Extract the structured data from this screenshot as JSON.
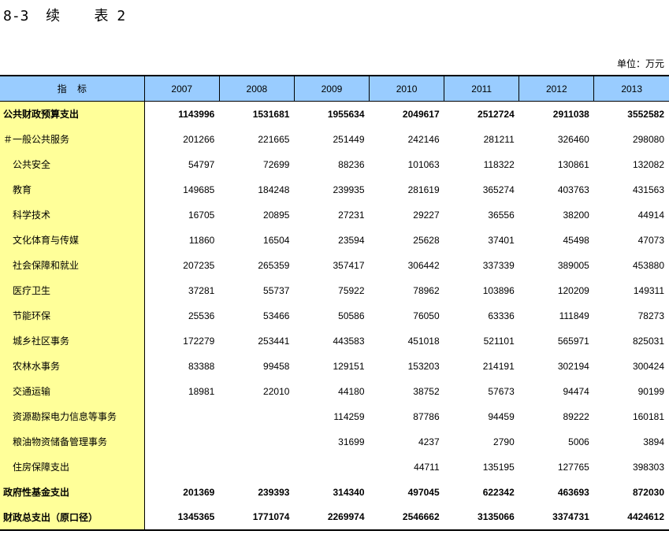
{
  "title": "8-3  续    表 2",
  "unit": "单位：万元",
  "header": {
    "indicator": "指    标",
    "years": [
      "2007",
      "2008",
      "2009",
      "2010",
      "2011",
      "2012",
      "2013"
    ]
  },
  "rows": [
    {
      "label": "公共财政预算支出",
      "bold": true,
      "indent": false,
      "values": [
        "1143996",
        "1531681",
        "1955634",
        "2049617",
        "2512724",
        "2911038",
        "3552582"
      ]
    },
    {
      "label": "＃一般公共服务",
      "bold": false,
      "indent": false,
      "values": [
        "201266",
        "221665",
        "251449",
        "242146",
        "281211",
        "326460",
        "298080"
      ]
    },
    {
      "label": "公共安全",
      "bold": false,
      "indent": true,
      "values": [
        "54797",
        "72699",
        "88236",
        "101063",
        "118322",
        "130861",
        "132082"
      ]
    },
    {
      "label": "教育",
      "bold": false,
      "indent": true,
      "values": [
        "149685",
        "184248",
        "239935",
        "281619",
        "365274",
        "403763",
        "431563"
      ]
    },
    {
      "label": "科学技术",
      "bold": false,
      "indent": true,
      "values": [
        "16705",
        "20895",
        "27231",
        "29227",
        "36556",
        "38200",
        "44914"
      ]
    },
    {
      "label": "文化体育与传媒",
      "bold": false,
      "indent": true,
      "values": [
        "11860",
        "16504",
        "23594",
        "25628",
        "37401",
        "45498",
        "47073"
      ]
    },
    {
      "label": "社会保障和就业",
      "bold": false,
      "indent": true,
      "values": [
        "207235",
        "265359",
        "357417",
        "306442",
        "337339",
        "389005",
        "453880"
      ]
    },
    {
      "label": "医疗卫生",
      "bold": false,
      "indent": true,
      "values": [
        "37281",
        "55737",
        "75922",
        "78962",
        "103896",
        "120209",
        "149311"
      ]
    },
    {
      "label": "节能环保",
      "bold": false,
      "indent": true,
      "values": [
        "25536",
        "53466",
        "50586",
        "76050",
        "63336",
        "111849",
        "78273"
      ]
    },
    {
      "label": "城乡社区事务",
      "bold": false,
      "indent": true,
      "values": [
        "172279",
        "253441",
        "443583",
        "451018",
        "521101",
        "565971",
        "825031"
      ]
    },
    {
      "label": "农林水事务",
      "bold": false,
      "indent": true,
      "values": [
        "83388",
        "99458",
        "129151",
        "153203",
        "214191",
        "302194",
        "300424"
      ]
    },
    {
      "label": "交通运输",
      "bold": false,
      "indent": true,
      "values": [
        "18981",
        "22010",
        "44180",
        "38752",
        "57673",
        "94474",
        "90199"
      ]
    },
    {
      "label": "资源勘探电力信息等事务",
      "bold": false,
      "indent": true,
      "values": [
        "",
        "",
        "114259",
        "87786",
        "94459",
        "89222",
        "160181"
      ]
    },
    {
      "label": "粮油物资储备管理事务",
      "bold": false,
      "indent": true,
      "values": [
        "",
        "",
        "31699",
        "4237",
        "2790",
        "5006",
        "3894"
      ]
    },
    {
      "label": "住房保障支出",
      "bold": false,
      "indent": true,
      "values": [
        "",
        "",
        "",
        "44711",
        "135195",
        "127765",
        "398303"
      ]
    },
    {
      "label": "政府性基金支出",
      "bold": true,
      "indent": false,
      "values": [
        "201369",
        "239393",
        "314340",
        "497045",
        "622342",
        "463693",
        "872030"
      ]
    },
    {
      "label": "财政总支出（原口径）",
      "bold": true,
      "indent": false,
      "values": [
        "1345365",
        "1771074",
        "2269974",
        "2546662",
        "3135066",
        "3374731",
        "4424612"
      ]
    }
  ]
}
